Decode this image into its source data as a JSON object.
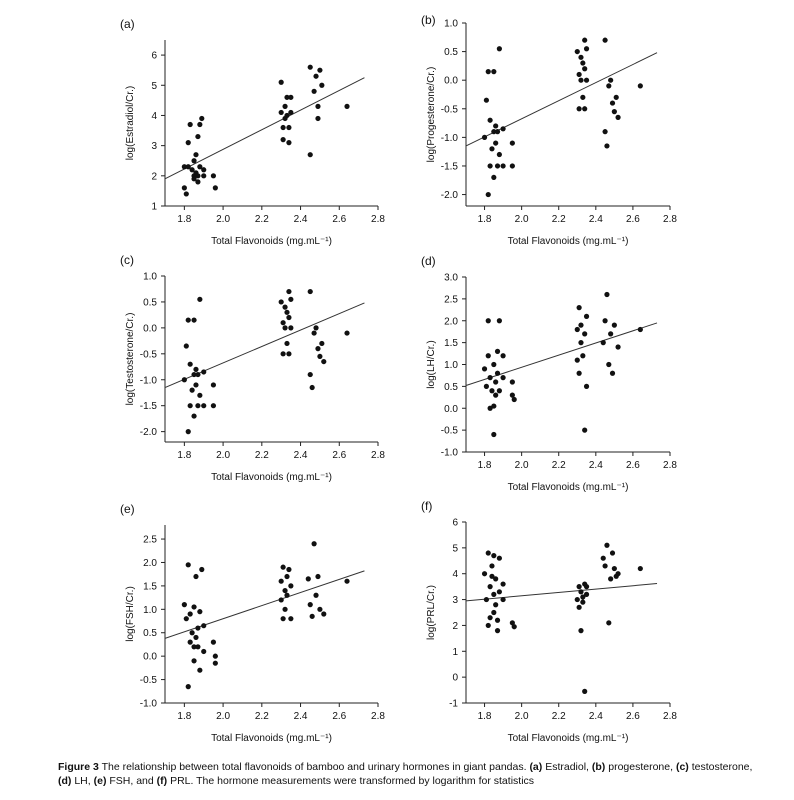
{
  "caption": {
    "figure_label": "Figure 3",
    "text_1": " The relationship between total flavonoids of bamboo and urinary hormones in giant pandas. ",
    "a": "(a)",
    "a_text": " Estradiol, ",
    "b": "(b)",
    "b_text": " progesterone, ",
    "c": "(c)",
    "c_text": " testosterone, ",
    "d": "(d)",
    "d_text": " LH, ",
    "e": "(e)",
    "e_text": " FSH, and ",
    "f": "(f)",
    "f_text": " PRL. The hormone measurements were transformed by logarithm for statistics"
  },
  "chart_data": [
    {
      "panel": "(a)",
      "type": "scatter",
      "xlabel": "Total Flavonoids (mg.mL⁻¹)",
      "ylabel": "log(Estradiol/Cr.)",
      "xlim": [
        1.7,
        2.8
      ],
      "ylim": [
        1,
        6.5
      ],
      "xticks": [
        "1.8",
        "2.0",
        "2.2",
        "2.4",
        "2.6",
        "2.8"
      ],
      "yticks": [
        "1",
        "2",
        "3",
        "4",
        "5",
        "6"
      ],
      "trendline": [
        [
          1.7,
          1.9
        ],
        [
          2.73,
          5.25
        ]
      ],
      "points": [
        [
          1.8,
          2.3
        ],
        [
          1.8,
          1.6
        ],
        [
          1.81,
          1.4
        ],
        [
          1.82,
          3.1
        ],
        [
          1.82,
          2.3
        ],
        [
          1.83,
          3.7
        ],
        [
          1.84,
          2.2
        ],
        [
          1.85,
          2.0
        ],
        [
          1.85,
          2.5
        ],
        [
          1.85,
          1.9
        ],
        [
          1.86,
          2.7
        ],
        [
          1.86,
          2.1
        ],
        [
          1.87,
          3.3
        ],
        [
          1.87,
          2.0
        ],
        [
          1.87,
          1.8
        ],
        [
          1.88,
          2.3
        ],
        [
          1.88,
          3.7
        ],
        [
          1.89,
          3.9
        ],
        [
          1.9,
          2.2
        ],
        [
          1.9,
          2.0
        ],
        [
          1.95,
          2.0
        ],
        [
          1.96,
          1.6
        ],
        [
          2.3,
          4.1
        ],
        [
          2.3,
          5.1
        ],
        [
          2.31,
          3.6
        ],
        [
          2.31,
          3.2
        ],
        [
          2.32,
          4.3
        ],
        [
          2.32,
          3.9
        ],
        [
          2.33,
          4.6
        ],
        [
          2.33,
          4.0
        ],
        [
          2.34,
          3.1
        ],
        [
          2.34,
          3.6
        ],
        [
          2.35,
          4.1
        ],
        [
          2.35,
          4.6
        ],
        [
          2.45,
          5.6
        ],
        [
          2.45,
          2.7
        ],
        [
          2.47,
          4.8
        ],
        [
          2.48,
          5.3
        ],
        [
          2.49,
          4.3
        ],
        [
          2.49,
          3.9
        ],
        [
          2.5,
          5.5
        ],
        [
          2.51,
          5.0
        ],
        [
          2.64,
          4.3
        ]
      ]
    },
    {
      "panel": "(b)",
      "type": "scatter",
      "xlabel": "Total Flavonoids (mg.mL⁻¹)",
      "ylabel": "log(Progesterone/Cr.)",
      "xlim": [
        1.7,
        2.8
      ],
      "ylim": [
        -2.2,
        1.0
      ],
      "xticks": [
        "1.8",
        "2.0",
        "2.2",
        "2.4",
        "2.6",
        "2.8"
      ],
      "yticks": [
        "1.0",
        "0.5",
        "0.0",
        "-0.5",
        "-1.0",
        "-1.5",
        "-2.0"
      ],
      "trendline": [
        [
          1.7,
          -1.15
        ],
        [
          2.73,
          0.48
        ]
      ],
      "points": [
        [
          1.8,
          -1.0
        ],
        [
          1.81,
          -0.35
        ],
        [
          1.82,
          0.15
        ],
        [
          1.82,
          -2.0
        ],
        [
          1.83,
          -1.5
        ],
        [
          1.83,
          -0.7
        ],
        [
          1.84,
          -1.2
        ],
        [
          1.85,
          -0.9
        ],
        [
          1.85,
          -1.7
        ],
        [
          1.85,
          0.15
        ],
        [
          1.86,
          -1.1
        ],
        [
          1.86,
          -0.8
        ],
        [
          1.87,
          -1.5
        ],
        [
          1.87,
          -0.9
        ],
        [
          1.88,
          0.55
        ],
        [
          1.88,
          -1.3
        ],
        [
          1.9,
          -0.85
        ],
        [
          1.9,
          -1.5
        ],
        [
          1.95,
          -1.1
        ],
        [
          1.95,
          -1.5
        ],
        [
          2.3,
          0.5
        ],
        [
          2.31,
          0.1
        ],
        [
          2.31,
          -0.5
        ],
        [
          2.32,
          0.4
        ],
        [
          2.32,
          0.0
        ],
        [
          2.33,
          0.3
        ],
        [
          2.33,
          -0.3
        ],
        [
          2.34,
          0.7
        ],
        [
          2.34,
          0.2
        ],
        [
          2.34,
          -0.5
        ],
        [
          2.35,
          0.55
        ],
        [
          2.35,
          0.0
        ],
        [
          2.45,
          0.7
        ],
        [
          2.45,
          -0.9
        ],
        [
          2.46,
          -1.15
        ],
        [
          2.47,
          -0.1
        ],
        [
          2.48,
          0.0
        ],
        [
          2.49,
          -0.4
        ],
        [
          2.5,
          -0.55
        ],
        [
          2.51,
          -0.3
        ],
        [
          2.52,
          -0.65
        ],
        [
          2.64,
          -0.1
        ]
      ]
    },
    {
      "panel": "(c)",
      "type": "scatter",
      "xlabel": "Total Flavonoids (mg.mL⁻¹)",
      "ylabel": "log(Testosterone/Cr.)",
      "xlim": [
        1.7,
        2.8
      ],
      "ylim": [
        -2.2,
        1.0
      ],
      "xticks": [
        "1.8",
        "2.0",
        "2.2",
        "2.4",
        "2.6",
        "2.8"
      ],
      "yticks": [
        "1.0",
        "0.5",
        "0.0",
        "-0.5",
        "-1.0",
        "-1.5",
        "-2.0"
      ],
      "trendline": [
        [
          1.7,
          -1.15
        ],
        [
          2.73,
          0.48
        ]
      ],
      "points": [
        [
          1.8,
          -1.0
        ],
        [
          1.81,
          -0.35
        ],
        [
          1.82,
          0.15
        ],
        [
          1.82,
          -2.0
        ],
        [
          1.83,
          -1.5
        ],
        [
          1.83,
          -0.7
        ],
        [
          1.84,
          -1.2
        ],
        [
          1.85,
          -0.9
        ],
        [
          1.85,
          -1.7
        ],
        [
          1.85,
          0.15
        ],
        [
          1.86,
          -1.1
        ],
        [
          1.86,
          -0.8
        ],
        [
          1.87,
          -1.5
        ],
        [
          1.87,
          -0.9
        ],
        [
          1.88,
          0.55
        ],
        [
          1.88,
          -1.3
        ],
        [
          1.9,
          -0.85
        ],
        [
          1.9,
          -1.5
        ],
        [
          1.95,
          -1.1
        ],
        [
          1.95,
          -1.5
        ],
        [
          2.3,
          0.5
        ],
        [
          2.31,
          0.1
        ],
        [
          2.31,
          -0.5
        ],
        [
          2.32,
          0.4
        ],
        [
          2.32,
          0.0
        ],
        [
          2.33,
          0.3
        ],
        [
          2.33,
          -0.3
        ],
        [
          2.34,
          0.7
        ],
        [
          2.34,
          0.2
        ],
        [
          2.34,
          -0.5
        ],
        [
          2.35,
          0.55
        ],
        [
          2.35,
          0.0
        ],
        [
          2.45,
          0.7
        ],
        [
          2.45,
          -0.9
        ],
        [
          2.46,
          -1.15
        ],
        [
          2.47,
          -0.1
        ],
        [
          2.48,
          0.0
        ],
        [
          2.49,
          -0.4
        ],
        [
          2.5,
          -0.55
        ],
        [
          2.51,
          -0.3
        ],
        [
          2.52,
          -0.65
        ],
        [
          2.64,
          -0.1
        ]
      ]
    },
    {
      "panel": "(d)",
      "type": "scatter",
      "xlabel": "Total Flavonoids (mg.mL⁻¹)",
      "ylabel": "log(LH/Cr.)",
      "xlim": [
        1.7,
        2.8
      ],
      "ylim": [
        -1.0,
        3.0
      ],
      "xticks": [
        "1.8",
        "2.0",
        "2.2",
        "2.4",
        "2.6",
        "2.8"
      ],
      "yticks": [
        "3.0",
        "2.5",
        "2.0",
        "1.5",
        "1.0",
        "0.5",
        "0.0",
        "-0.5",
        "-1.0"
      ],
      "trendline": [
        [
          1.7,
          0.52
        ],
        [
          2.73,
          1.95
        ]
      ],
      "points": [
        [
          1.8,
          0.9
        ],
        [
          1.81,
          0.5
        ],
        [
          1.82,
          1.2
        ],
        [
          1.82,
          2.0
        ],
        [
          1.83,
          0.0
        ],
        [
          1.83,
          0.7
        ],
        [
          1.84,
          0.4
        ],
        [
          1.85,
          1.0
        ],
        [
          1.85,
          0.05
        ],
        [
          1.85,
          -0.6
        ],
        [
          1.86,
          0.6
        ],
        [
          1.86,
          0.3
        ],
        [
          1.87,
          1.3
        ],
        [
          1.87,
          0.8
        ],
        [
          1.88,
          2.0
        ],
        [
          1.88,
          0.4
        ],
        [
          1.9,
          0.7
        ],
        [
          1.9,
          1.2
        ],
        [
          1.95,
          0.6
        ],
        [
          1.95,
          0.3
        ],
        [
          1.96,
          0.2
        ],
        [
          2.3,
          1.1
        ],
        [
          2.3,
          1.8
        ],
        [
          2.31,
          2.3
        ],
        [
          2.31,
          0.8
        ],
        [
          2.32,
          1.5
        ],
        [
          2.32,
          1.9
        ],
        [
          2.33,
          1.2
        ],
        [
          2.34,
          -0.5
        ],
        [
          2.34,
          1.7
        ],
        [
          2.35,
          0.5
        ],
        [
          2.35,
          2.1
        ],
        [
          2.44,
          1.5
        ],
        [
          2.45,
          2.0
        ],
        [
          2.46,
          2.6
        ],
        [
          2.47,
          1.0
        ],
        [
          2.48,
          1.7
        ],
        [
          2.49,
          0.8
        ],
        [
          2.5,
          1.9
        ],
        [
          2.52,
          1.4
        ],
        [
          2.64,
          1.8
        ]
      ]
    },
    {
      "panel": "(e)",
      "type": "scatter",
      "xlabel": "Total Flavonoids (mg.mL⁻¹)",
      "ylabel": "log(FSH/Cr.)",
      "xlim": [
        1.7,
        2.8
      ],
      "ylim": [
        -1.0,
        2.8
      ],
      "xticks": [
        "1.8",
        "2.0",
        "2.2",
        "2.4",
        "2.6",
        "2.8"
      ],
      "yticks": [
        "2.5",
        "2.0",
        "1.5",
        "1.0",
        "0.5",
        "0.0",
        "-0.5",
        "-1.0"
      ],
      "trendline": [
        [
          1.7,
          0.38
        ],
        [
          2.73,
          1.82
        ]
      ],
      "points": [
        [
          1.8,
          1.1
        ],
        [
          1.81,
          0.8
        ],
        [
          1.82,
          1.95
        ],
        [
          1.82,
          -0.65
        ],
        [
          1.83,
          0.9
        ],
        [
          1.83,
          0.3
        ],
        [
          1.84,
          0.5
        ],
        [
          1.85,
          0.2
        ],
        [
          1.85,
          -0.1
        ],
        [
          1.85,
          1.05
        ],
        [
          1.86,
          0.4
        ],
        [
          1.86,
          1.7
        ],
        [
          1.87,
          0.6
        ],
        [
          1.87,
          0.2
        ],
        [
          1.88,
          0.95
        ],
        [
          1.88,
          -0.3
        ],
        [
          1.89,
          1.85
        ],
        [
          1.9,
          0.65
        ],
        [
          1.9,
          0.1
        ],
        [
          1.95,
          0.3
        ],
        [
          1.96,
          -0.15
        ],
        [
          1.96,
          0.0
        ],
        [
          2.3,
          1.2
        ],
        [
          2.3,
          1.6
        ],
        [
          2.31,
          0.8
        ],
        [
          2.31,
          1.9
        ],
        [
          2.32,
          1.4
        ],
        [
          2.32,
          1.0
        ],
        [
          2.33,
          1.7
        ],
        [
          2.33,
          1.3
        ],
        [
          2.34,
          1.85
        ],
        [
          2.35,
          0.8
        ],
        [
          2.35,
          1.5
        ],
        [
          2.44,
          1.65
        ],
        [
          2.45,
          1.1
        ],
        [
          2.46,
          0.85
        ],
        [
          2.47,
          2.4
        ],
        [
          2.48,
          1.3
        ],
        [
          2.49,
          1.7
        ],
        [
          2.5,
          1.0
        ],
        [
          2.52,
          0.9
        ],
        [
          2.64,
          1.6
        ]
      ]
    },
    {
      "panel": "(f)",
      "type": "scatter",
      "xlabel": "Total Flavonoids (mg.mL⁻¹)",
      "ylabel": "log(PRL/Cr.)",
      "xlim": [
        1.7,
        2.8
      ],
      "ylim": [
        -1,
        6
      ],
      "xticks": [
        "1.8",
        "2.0",
        "2.2",
        "2.4",
        "2.6",
        "2.8"
      ],
      "yticks": [
        "6",
        "5",
        "4",
        "3",
        "2",
        "1",
        "0",
        "-1"
      ],
      "trendline": [
        [
          1.7,
          2.95
        ],
        [
          2.73,
          3.62
        ]
      ],
      "points": [
        [
          1.8,
          4.0
        ],
        [
          1.81,
          3.0
        ],
        [
          1.82,
          4.8
        ],
        [
          1.82,
          2.0
        ],
        [
          1.83,
          3.5
        ],
        [
          1.83,
          2.3
        ],
        [
          1.84,
          4.3
        ],
        [
          1.84,
          3.9
        ],
        [
          1.85,
          3.2
        ],
        [
          1.85,
          2.5
        ],
        [
          1.85,
          4.7
        ],
        [
          1.86,
          2.8
        ],
        [
          1.86,
          3.8
        ],
        [
          1.87,
          2.2
        ],
        [
          1.87,
          1.8
        ],
        [
          1.88,
          4.6
        ],
        [
          1.88,
          3.3
        ],
        [
          1.9,
          3.0
        ],
        [
          1.9,
          3.6
        ],
        [
          1.95,
          2.1
        ],
        [
          1.96,
          1.95
        ],
        [
          2.3,
          3.0
        ],
        [
          2.31,
          3.5
        ],
        [
          2.31,
          2.7
        ],
        [
          2.32,
          1.8
        ],
        [
          2.32,
          3.3
        ],
        [
          2.33,
          2.9
        ],
        [
          2.33,
          3.1
        ],
        [
          2.34,
          -0.55
        ],
        [
          2.34,
          3.6
        ],
        [
          2.35,
          3.2
        ],
        [
          2.35,
          3.5
        ],
        [
          2.44,
          4.6
        ],
        [
          2.45,
          4.3
        ],
        [
          2.46,
          5.1
        ],
        [
          2.47,
          2.1
        ],
        [
          2.48,
          3.8
        ],
        [
          2.49,
          4.8
        ],
        [
          2.5,
          4.2
        ],
        [
          2.51,
          3.9
        ],
        [
          2.52,
          4.0
        ],
        [
          2.64,
          4.2
        ]
      ]
    }
  ]
}
